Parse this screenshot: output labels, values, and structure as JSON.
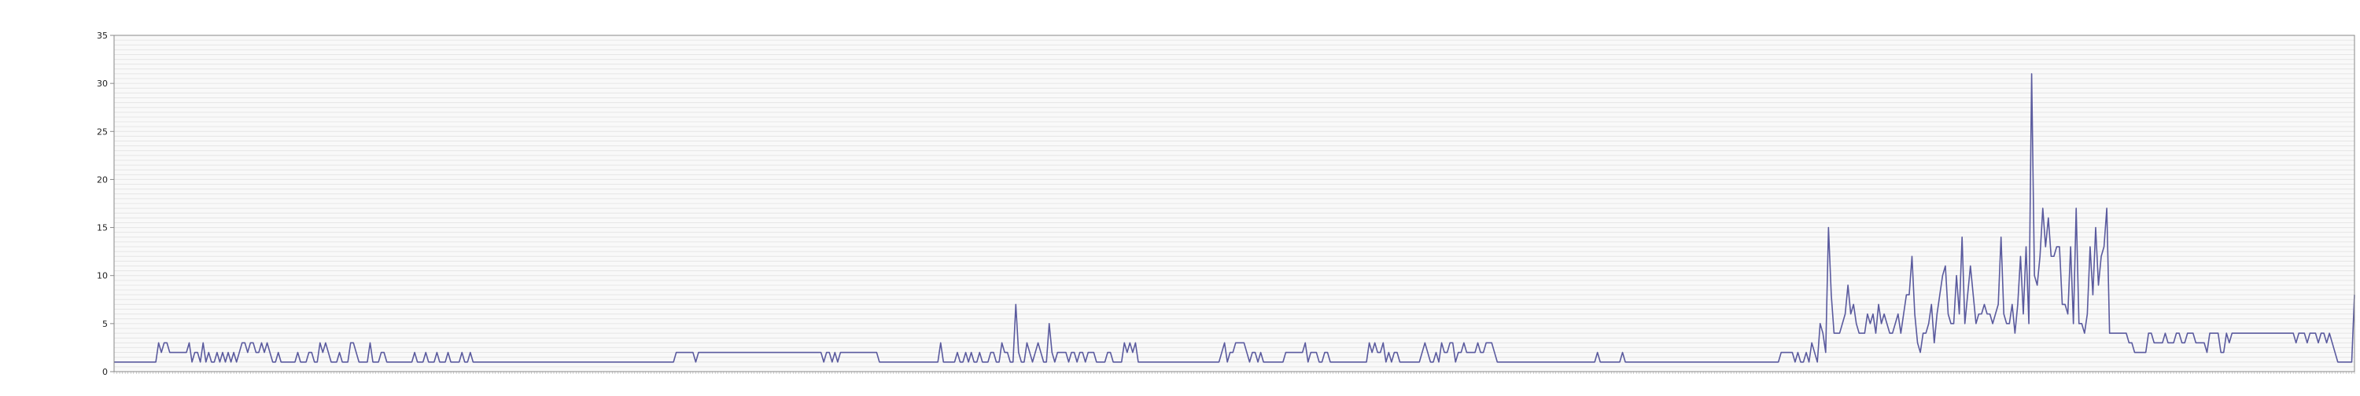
{
  "chart_data": {
    "type": "line",
    "title": "",
    "xlabel": "",
    "ylabel": "",
    "ylim": [
      0,
      35
    ],
    "y_ticks": [
      0,
      5,
      10,
      15,
      20,
      25,
      30,
      35
    ],
    "grid": true,
    "colors": {
      "line": "#5a5a9e",
      "grid": "#e6e6e6",
      "frame": "#888888",
      "background": "#f9f9f9"
    },
    "series": [
      {
        "values": [
          1,
          1,
          1,
          1,
          1,
          1,
          1,
          1,
          1,
          1,
          1,
          1,
          1,
          1,
          1,
          1,
          3,
          2,
          3,
          3,
          2,
          2,
          2,
          2,
          2,
          2,
          2,
          3,
          1,
          2,
          2,
          1,
          3,
          1,
          2,
          1,
          1,
          2,
          1,
          2,
          1,
          2,
          1,
          2,
          1,
          2,
          3,
          3,
          2,
          3,
          3,
          2,
          2,
          3,
          2,
          3,
          2,
          1,
          1,
          2,
          1,
          1,
          1,
          1,
          1,
          1,
          2,
          1,
          1,
          1,
          2,
          2,
          1,
          1,
          3,
          2,
          3,
          2,
          1,
          1,
          1,
          2,
          1,
          1,
          1,
          3,
          3,
          2,
          1,
          1,
          1,
          1,
          3,
          1,
          1,
          1,
          2,
          2,
          1,
          1,
          1,
          1,
          1,
          1,
          1,
          1,
          1,
          1,
          2,
          1,
          1,
          1,
          2,
          1,
          1,
          1,
          2,
          1,
          1,
          1,
          2,
          1,
          1,
          1,
          1,
          2,
          1,
          1,
          2,
          1,
          1,
          1,
          1,
          1,
          1,
          1,
          1,
          1,
          1,
          1,
          1,
          1,
          1,
          1,
          1,
          1,
          1,
          1,
          1,
          1,
          1,
          1,
          1,
          1,
          1,
          1,
          1,
          1,
          1,
          1,
          1,
          1,
          1,
          1,
          1,
          1,
          1,
          1,
          1,
          1,
          1,
          1,
          1,
          1,
          1,
          1,
          1,
          1,
          1,
          1,
          1,
          1,
          1,
          1,
          1,
          1,
          1,
          1,
          1,
          1,
          1,
          1,
          1,
          1,
          1,
          1,
          1,
          1,
          1,
          1,
          1,
          1,
          2,
          2,
          2,
          2,
          2,
          2,
          2,
          1,
          2,
          2,
          2,
          2,
          2,
          2,
          2,
          2,
          2,
          2,
          2,
          2,
          2,
          2,
          2,
          2,
          2,
          2,
          2,
          2,
          2,
          2,
          2,
          2,
          2,
          2,
          2,
          2,
          2,
          2,
          2,
          2,
          2,
          2,
          2,
          2,
          2,
          2,
          2,
          2,
          2,
          2,
          2,
          2,
          2,
          1,
          2,
          2,
          1,
          2,
          1,
          2,
          2,
          2,
          2,
          2,
          2,
          2,
          2,
          2,
          2,
          2,
          2,
          2,
          2,
          1,
          1,
          1,
          1,
          1,
          1,
          1,
          1,
          1,
          1,
          1,
          1,
          1,
          1,
          1,
          1,
          1,
          1,
          1,
          1,
          1,
          1,
          3,
          1,
          1,
          1,
          1,
          1,
          2,
          1,
          1,
          2,
          1,
          2,
          1,
          1,
          2,
          1,
          1,
          1,
          2,
          2,
          1,
          1,
          3,
          2,
          2,
          1,
          1,
          7,
          2,
          1,
          1,
          3,
          2,
          1,
          2,
          3,
          2,
          1,
          1,
          5,
          2,
          1,
          2,
          2,
          2,
          2,
          1,
          2,
          2,
          1,
          2,
          2,
          1,
          2,
          2,
          2,
          1,
          1,
          1,
          1,
          2,
          2,
          1,
          1,
          1,
          1,
          3,
          2,
          3,
          2,
          3,
          1,
          1,
          1,
          1,
          1,
          1,
          1,
          1,
          1,
          1,
          1,
          1,
          1,
          1,
          1,
          1,
          1,
          1,
          1,
          1,
          1,
          1,
          1,
          1,
          1,
          1,
          1,
          1,
          1,
          1,
          2,
          3,
          1,
          2,
          2,
          3,
          3,
          3,
          3,
          2,
          1,
          2,
          2,
          1,
          2,
          1,
          1,
          1,
          1,
          1,
          1,
          1,
          1,
          2,
          2,
          2,
          2,
          2,
          2,
          2,
          3,
          1,
          2,
          2,
          2,
          1,
          1,
          2,
          2,
          1,
          1,
          1,
          1,
          1,
          1,
          1,
          1,
          1,
          1,
          1,
          1,
          1,
          1,
          3,
          2,
          3,
          2,
          2,
          3,
          1,
          2,
          1,
          2,
          2,
          1,
          1,
          1,
          1,
          1,
          1,
          1,
          1,
          2,
          3,
          2,
          1,
          1,
          2,
          1,
          3,
          2,
          2,
          3,
          3,
          1,
          2,
          2,
          3,
          2,
          2,
          2,
          2,
          3,
          2,
          2,
          3,
          3,
          3,
          2,
          1,
          1,
          1,
          1,
          1,
          1,
          1,
          1,
          1,
          1,
          1,
          1,
          1,
          1,
          1,
          1,
          1,
          1,
          1,
          1,
          1,
          1,
          1,
          1,
          1,
          1,
          1,
          1,
          1,
          1,
          1,
          1,
          1,
          1,
          1,
          1,
          2,
          1,
          1,
          1,
          1,
          1,
          1,
          1,
          1,
          2,
          1,
          1,
          1,
          1,
          1,
          1,
          1,
          1,
          1,
          1,
          1,
          1,
          1,
          1,
          1,
          1,
          1,
          1,
          1,
          1,
          1,
          1,
          1,
          1,
          1,
          1,
          1,
          1,
          1,
          1,
          1,
          1,
          1,
          1,
          1,
          1,
          1,
          1,
          1,
          1,
          1,
          1,
          1,
          1,
          1,
          1,
          1,
          1,
          1,
          1,
          1,
          1,
          1,
          1,
          1,
          1,
          2,
          2,
          2,
          2,
          2,
          1,
          2,
          1,
          1,
          2,
          1,
          3,
          2,
          1,
          5,
          4,
          2,
          15,
          8,
          4,
          4,
          4,
          5,
          6,
          9,
          6,
          7,
          5,
          4,
          4,
          4,
          6,
          5,
          6,
          4,
          7,
          5,
          6,
          5,
          4,
          4,
          5,
          6,
          4,
          6,
          8,
          8,
          12,
          6,
          3,
          2,
          4,
          4,
          5,
          7,
          3,
          6,
          8,
          10,
          11,
          6,
          5,
          5,
          10,
          6,
          14,
          5,
          8,
          11,
          8,
          5,
          6,
          6,
          7,
          6,
          6,
          5,
          6,
          7,
          14,
          6,
          5,
          5,
          7,
          4,
          7,
          12,
          6,
          13,
          5,
          31,
          10,
          9,
          12,
          17,
          13,
          16,
          12,
          12,
          13,
          13,
          7,
          7,
          6,
          13,
          5,
          17,
          5,
          5,
          4,
          6,
          13,
          8,
          15,
          9,
          12,
          13,
          17,
          4,
          4,
          4,
          4,
          4,
          4,
          4,
          3,
          3,
          2,
          2,
          2,
          2,
          2,
          4,
          4,
          3,
          3,
          3,
          3,
          4,
          3,
          3,
          3,
          4,
          4,
          3,
          3,
          4,
          4,
          4,
          3,
          3,
          3,
          3,
          2,
          4,
          4,
          4,
          4,
          2,
          2,
          4,
          3,
          4,
          4,
          4,
          4,
          4,
          4,
          4,
          4,
          4,
          4,
          4,
          4,
          4,
          4,
          4,
          4,
          4,
          4,
          4,
          4,
          4,
          4,
          4,
          3,
          4,
          4,
          4,
          3,
          4,
          4,
          4,
          3,
          4,
          4,
          3,
          4,
          3,
          2,
          1,
          1,
          1,
          1,
          1,
          1,
          8
        ]
      }
    ]
  }
}
